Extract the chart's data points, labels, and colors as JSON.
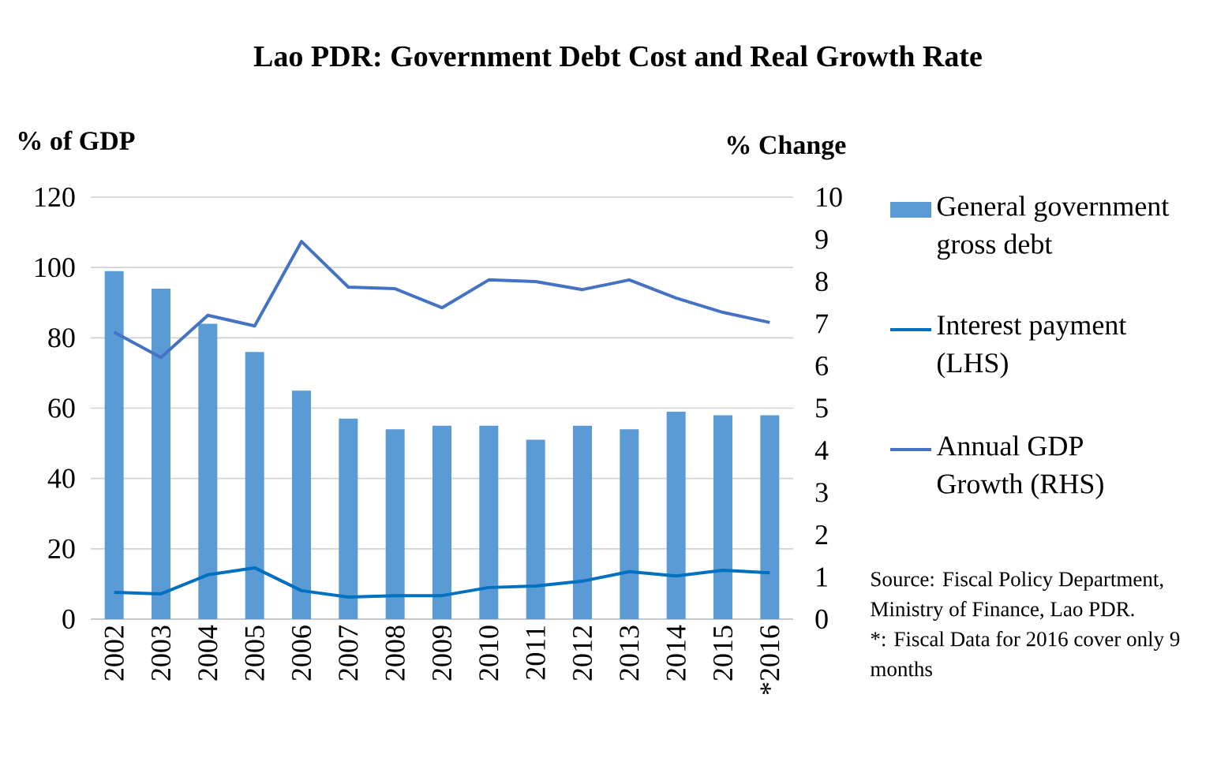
{
  "chart_data": {
    "type": "bar",
    "title": "Lao PDR: Government Debt Cost and Real Growth Rate",
    "ylabel": "% of GDP",
    "y2label": "% Change",
    "categories": [
      "2002",
      "2003",
      "2004",
      "2005",
      "2006",
      "2007",
      "2008",
      "2009",
      "2010",
      "2011",
      "2012",
      "2013",
      "2014",
      "2015",
      "*2016"
    ],
    "series": [
      {
        "name": "General government gross debt",
        "color": "#5b9bd5",
        "values": [
          99,
          94,
          84,
          76,
          65,
          57,
          54,
          55,
          55,
          51,
          55,
          54,
          59,
          58,
          58
        ]
      },
      {
        "name": "Interest payment (LHS)",
        "type": "line",
        "color": "#0070c0",
        "values": [
          7.6,
          7.2,
          12.6,
          14.6,
          8.1,
          6.3,
          6.7,
          6.7,
          9.0,
          9.4,
          10.8,
          13.5,
          12.3,
          13.9,
          13.2
        ]
      },
      {
        "name": "Annual GDP Growth (RHS)",
        "type": "line",
        "axis": "y2",
        "color": "#4472c4",
        "values": [
          6.8,
          6.2,
          7.2,
          6.95,
          8.95,
          7.87,
          7.83,
          7.38,
          8.04,
          8.0,
          7.81,
          8.04,
          7.61,
          7.27,
          7.03
        ]
      }
    ],
    "ylim": [
      0,
      120
    ],
    "yticks": [
      0,
      20,
      40,
      60,
      80,
      100,
      120
    ],
    "y2lim": [
      0,
      10
    ],
    "y2ticks": [
      0,
      1,
      2,
      3,
      4,
      5,
      6,
      7,
      8,
      9,
      10
    ],
    "grid": "y",
    "legend": "right",
    "annotations": [
      "Source: Fiscal Policy Department, Ministry of Finance, Lao PDR.",
      "*: Fiscal Data for 2016 cover only 9 months"
    ]
  }
}
